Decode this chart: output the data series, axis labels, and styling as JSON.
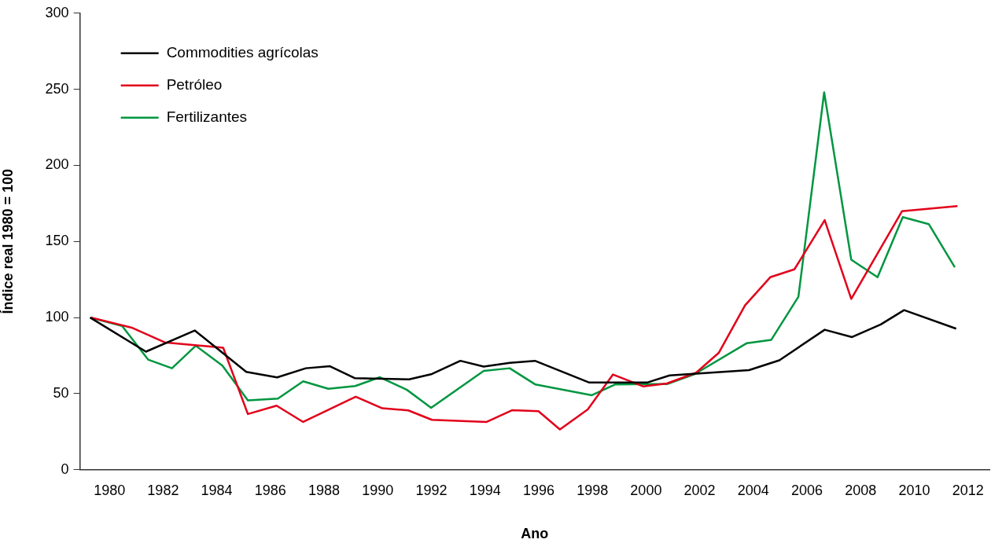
{
  "chart_data": {
    "type": "line",
    "xlabel": "Ano",
    "ylabel": "Índice real 1980 = 100",
    "xlim": [
      1978.9,
      2012.8
    ],
    "xticks": [
      1980,
      1982,
      1984,
      1986,
      1988,
      1990,
      1992,
      1994,
      1996,
      1998,
      2000,
      2002,
      2004,
      2006,
      2008,
      2010,
      2012
    ],
    "ylim": [
      0,
      300
    ],
    "yticks": [
      0,
      50,
      100,
      150,
      200,
      250,
      300
    ],
    "grid": false,
    "legend": "top left",
    "marker": "none",
    "line_style": "solid",
    "series": [
      {
        "name": "Commodities agrícolas",
        "color": "#000000",
        "x": [
          1979.28,
          1981.36,
          1983.18,
          1985.1,
          1986.25,
          1987.32,
          1988.22,
          1989.14,
          1991.17,
          1992.02,
          1993.08,
          1993.95,
          1994.92,
          1995.86,
          1997.87,
          2000.06,
          2000.88,
          2003.84,
          2004.97,
          2006.66,
          2007.68,
          2008.75,
          2009.62,
          2011.56
        ],
        "values": [
          100,
          77.6,
          91.5,
          64.3,
          60.7,
          66.7,
          68,
          60.2,
          59.4,
          62.9,
          71.6,
          67.8,
          70.2,
          71.6,
          57.4,
          57.4,
          62,
          65.5,
          71.9,
          92,
          87.2,
          95.5,
          104.9,
          92.7
        ]
      },
      {
        "name": "Petróleo",
        "color": "#e2001a",
        "x": [
          1979.32,
          1980.86,
          1982.06,
          1984.24,
          1985.16,
          1986.23,
          1987.22,
          1989.18,
          1990.17,
          1991.14,
          1992.02,
          1994.06,
          1995.02,
          1995.99,
          1996.79,
          1997.83,
          1998.77,
          1999.89,
          2000.78,
          2001.87,
          2002.71,
          2003.69,
          2004.63,
          2005.53,
          2006.66,
          2007.65,
          2009.54,
          2011.61
        ],
        "values": [
          100,
          93.2,
          83.7,
          80.2,
          36.6,
          42.1,
          31.4,
          48,
          40.4,
          39,
          32.8,
          31.4,
          39.2,
          38.5,
          26.5,
          39.7,
          62.6,
          54.8,
          56.7,
          63.8,
          76.8,
          108,
          126.5,
          131.7,
          164,
          112.3,
          169.9,
          173.3
        ]
      },
      {
        "name": "Fertilizantes",
        "color": "#009640",
        "x": [
          1979.28,
          1980.47,
          1981.44,
          1982.33,
          1983.22,
          1984.21,
          1985.16,
          1986.28,
          1987.22,
          1988.16,
          1989.16,
          1990.08,
          1991.09,
          1991.99,
          1993.95,
          1994.92,
          1995.88,
          1997.98,
          1998.84,
          2000.03,
          2000.78,
          2001.82,
          2003.76,
          2004.67,
          2005.68,
          2006.64,
          2007.65,
          2008.63,
          2009.57,
          2010.54,
          2011.51
        ],
        "values": [
          100,
          94.5,
          72.4,
          66.7,
          81.5,
          68.5,
          45.6,
          46.8,
          58.1,
          53.2,
          55,
          60.8,
          52.5,
          40.7,
          65,
          66.7,
          56,
          49,
          56,
          56.3,
          56.3,
          62.9,
          83.2,
          85.4,
          113.7,
          248,
          138,
          126.5,
          166,
          161.4,
          133.1
        ]
      }
    ]
  }
}
